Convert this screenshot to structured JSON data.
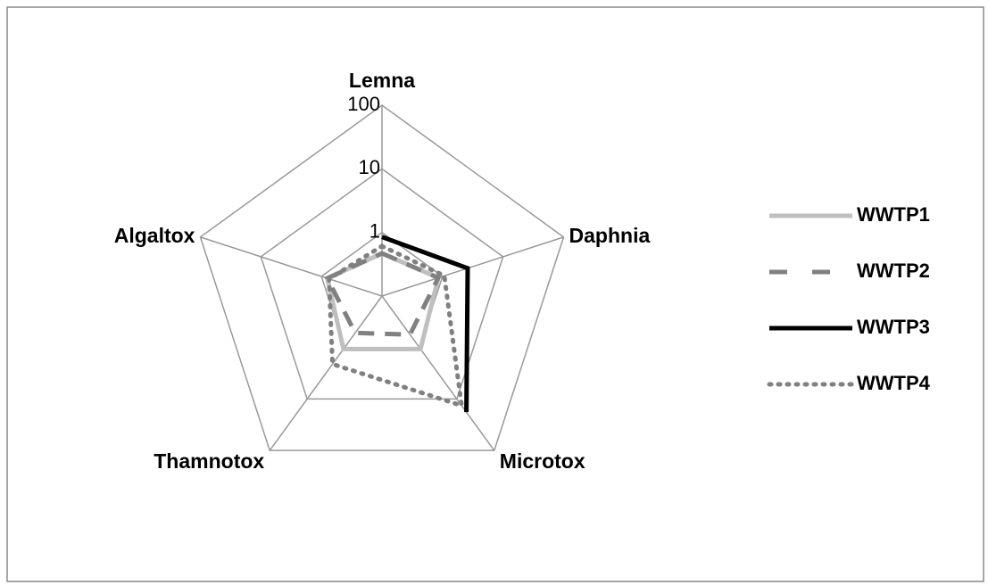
{
  "chart_data": {
    "type": "radar",
    "categories": [
      "Lemna",
      "Daphnia",
      "Microtox",
      "Thamnotox",
      "Algaltox"
    ],
    "log_scale": true,
    "ylim": [
      0.1,
      100
    ],
    "yticks": [
      1,
      10,
      100
    ],
    "grid": true,
    "legend": "right",
    "series": [
      {
        "name": "WWTP1",
        "color": "#bfbfbf",
        "line_style": "solid",
        "values": [
          0.47,
          0.85,
          1.07,
          1.07,
          0.8
        ]
      },
      {
        "name": "WWTP2",
        "color": "#808080",
        "line_style": "dashed",
        "values": [
          0.47,
          0.85,
          0.56,
          0.52,
          0.8
        ]
      },
      {
        "name": "WWTP3",
        "color": "#000000",
        "line_style": "solid",
        "values": [
          0.85,
          2.6,
          18,
          null,
          null
        ]
      },
      {
        "name": "WWTP4",
        "color": "#808080",
        "line_style": "dotted",
        "values": [
          0.61,
          1.07,
          13.4,
          2.1,
          0.75
        ]
      }
    ]
  }
}
